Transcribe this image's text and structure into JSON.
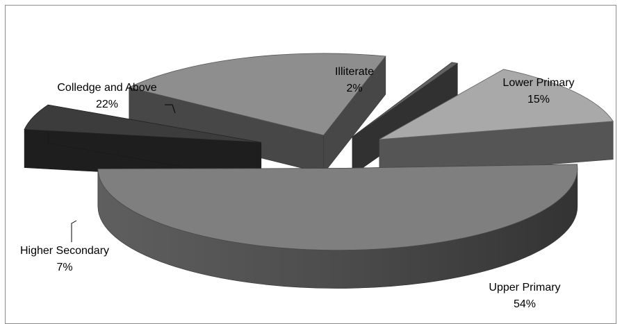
{
  "chart_data": {
    "type": "pie",
    "variant": "3d-exploded",
    "title": "",
    "legend": "none",
    "slices": [
      {
        "label": "Illiterate",
        "value": 2,
        "value_label": "2%",
        "color": "#626262"
      },
      {
        "label": "Lower Primary",
        "value": 15,
        "value_label": "15%",
        "color": "#a9a9a9"
      },
      {
        "label": "Upper Primary",
        "value": 54,
        "value_label": "54%",
        "color": "#7f7f7f"
      },
      {
        "label": "Higher Secondary",
        "value": 7,
        "value_label": "7%",
        "color": "#3c3c3c"
      },
      {
        "label": "Colledge and Above",
        "value": 22,
        "value_label": "22%",
        "color": "#8e8e8e"
      }
    ]
  }
}
